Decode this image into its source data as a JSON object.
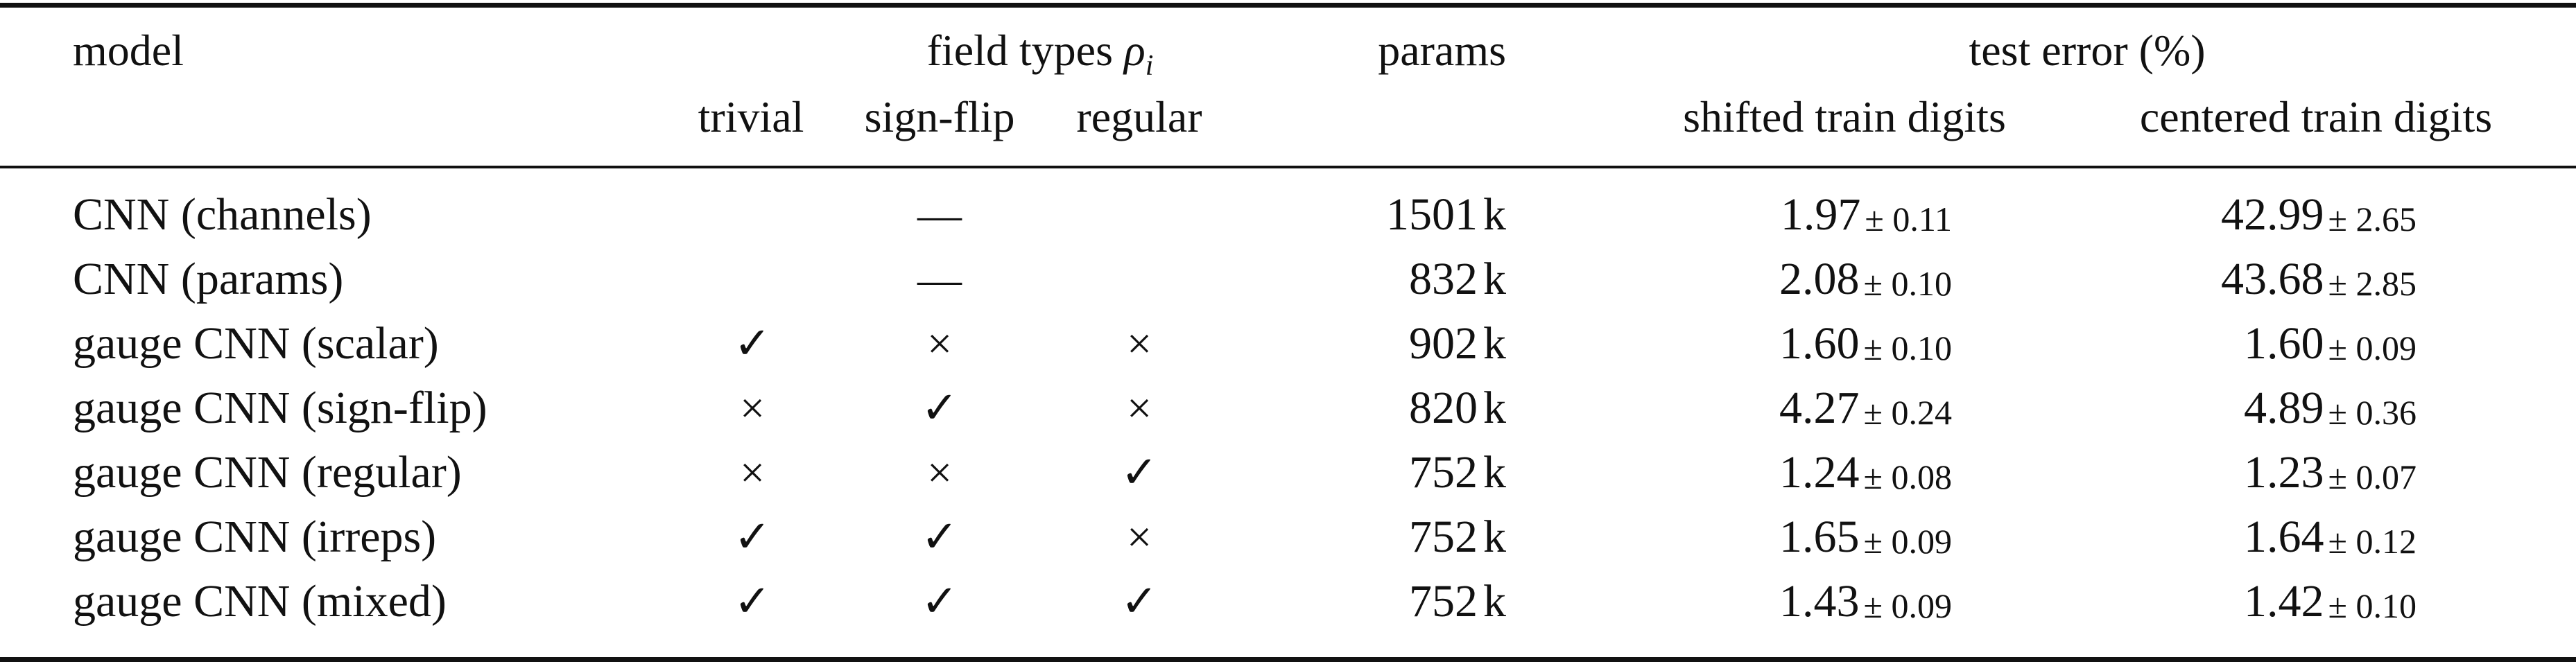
{
  "header": {
    "model": "model",
    "field_types_label": "field types",
    "field_types_symbol": "ρ",
    "field_types_subscript": "i",
    "params": "params",
    "test_error": "test error (%)",
    "trivial": "trivial",
    "sign_flip": "sign-flip",
    "regular": "regular",
    "shifted": "shifted train digits",
    "centered": "centered train digits"
  },
  "symbols": {
    "check": "✓",
    "cross": "×",
    "dash": "—",
    "pm": "±"
  },
  "rows": [
    {
      "model": "CNN (channels)",
      "trivial": "",
      "sign_flip": "—",
      "regular": "",
      "params": "1501",
      "unit": "k",
      "shifted_mean": "1.97",
      "shifted_sd": "0.11",
      "centered_mean": "42.99",
      "centered_sd": "2.65"
    },
    {
      "model": "CNN (params)",
      "trivial": "",
      "sign_flip": "—",
      "regular": "",
      "params": "832",
      "unit": "k",
      "shifted_mean": "2.08",
      "shifted_sd": "0.10",
      "centered_mean": "43.68",
      "centered_sd": "2.85"
    },
    {
      "model": "gauge CNN (scalar)",
      "trivial": "✓",
      "sign_flip": "×",
      "regular": "×",
      "params": "902",
      "unit": "k",
      "shifted_mean": "1.60",
      "shifted_sd": "0.10",
      "centered_mean": "1.60",
      "centered_sd": "0.09"
    },
    {
      "model": "gauge CNN (sign-flip)",
      "trivial": "×",
      "sign_flip": "✓",
      "regular": "×",
      "params": "820",
      "unit": "k",
      "shifted_mean": "4.27",
      "shifted_sd": "0.24",
      "centered_mean": "4.89",
      "centered_sd": "0.36"
    },
    {
      "model": "gauge CNN (regular)",
      "trivial": "×",
      "sign_flip": "×",
      "regular": "✓",
      "params": "752",
      "unit": "k",
      "shifted_mean": "1.24",
      "shifted_sd": "0.08",
      "centered_mean": "1.23",
      "centered_sd": "0.07"
    },
    {
      "model": "gauge CNN (irreps)",
      "trivial": "✓",
      "sign_flip": "✓",
      "regular": "×",
      "params": "752",
      "unit": "k",
      "shifted_mean": "1.65",
      "shifted_sd": "0.09",
      "centered_mean": "1.64",
      "centered_sd": "0.12"
    },
    {
      "model": "gauge CNN (mixed)",
      "trivial": "✓",
      "sign_flip": "✓",
      "regular": "✓",
      "params": "752",
      "unit": "k",
      "shifted_mean": "1.43",
      "shifted_sd": "0.09",
      "centered_mean": "1.42",
      "centered_sd": "0.10"
    }
  ]
}
